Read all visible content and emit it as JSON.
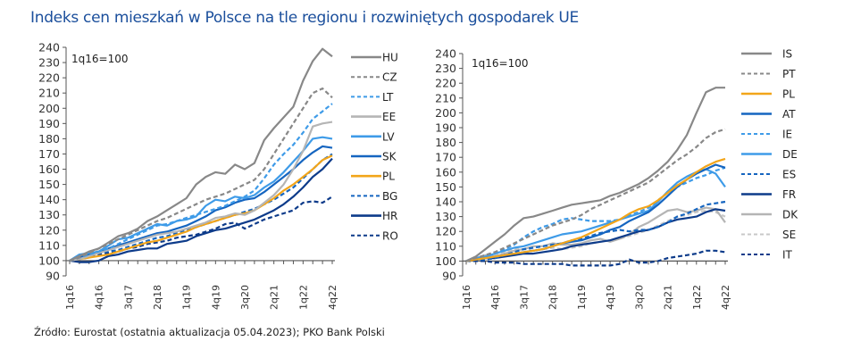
{
  "title": "Indeks cen mieszkań w Polsce na tle regionu i rozwiniętych gospodarek UE",
  "source": "Źródło: Eurostat (ostatnia aktualizacja 05.04.2023); PKO Bank Polski",
  "chart_data": [
    {
      "type": "line",
      "title": "",
      "annotation": "1q16=100",
      "ylim": [
        90,
        240
      ],
      "yticks": [
        90,
        100,
        110,
        120,
        130,
        140,
        150,
        160,
        170,
        180,
        190,
        200,
        210,
        220,
        230,
        240
      ],
      "xtick_labels": [
        "1q16",
        "4q16",
        "3q17",
        "2q18",
        "1q19",
        "4q19",
        "3q20",
        "2q21",
        "1q22",
        "4q22"
      ],
      "legend_position": "right",
      "x": [
        "1q16",
        "2q16",
        "3q16",
        "4q16",
        "1q17",
        "2q17",
        "3q17",
        "4q17",
        "1q18",
        "2q18",
        "3q18",
        "4q18",
        "1q19",
        "2q19",
        "3q19",
        "4q19",
        "1q20",
        "2q20",
        "3q20",
        "4q20",
        "1q21",
        "2q21",
        "3q21",
        "4q21",
        "1q22",
        "2q22",
        "3q22",
        "4q22"
      ],
      "series": [
        {
          "name": "HU",
          "color": "#888888",
          "dash": false,
          "values": [
            100,
            103,
            106,
            108,
            112,
            116,
            118,
            121,
            126,
            129,
            133,
            137,
            141,
            150,
            155,
            158,
            157,
            163,
            160,
            164,
            179,
            187,
            194,
            201,
            218,
            231,
            239,
            234
          ]
        },
        {
          "name": "CZ",
          "color": "#888888",
          "dash": true,
          "values": [
            100,
            102,
            105,
            108,
            111,
            114,
            117,
            120,
            123,
            126,
            128,
            131,
            134,
            137,
            140,
            142,
            144,
            147,
            150,
            153,
            160,
            170,
            180,
            190,
            200,
            210,
            213,
            207
          ]
        },
        {
          "name": "LT",
          "color": "#3e9be8",
          "dash": true,
          "values": [
            100,
            102,
            104,
            106,
            108,
            111,
            114,
            117,
            120,
            123,
            124,
            126,
            128,
            130,
            132,
            134,
            136,
            139,
            142,
            146,
            154,
            163,
            170,
            176,
            184,
            193,
            198,
            203
          ]
        },
        {
          "name": "EE",
          "color": "#b5b5b5",
          "dash": false,
          "values": [
            100,
            101,
            103,
            105,
            107,
            109,
            111,
            113,
            115,
            117,
            118,
            119,
            121,
            123,
            125,
            128,
            129,
            131,
            130,
            133,
            138,
            143,
            150,
            160,
            172,
            188,
            190,
            191
          ]
        },
        {
          "name": "LV",
          "color": "#3e9be8",
          "dash": false,
          "values": [
            100,
            104,
            105,
            106,
            110,
            114,
            115,
            118,
            121,
            124,
            123,
            126,
            127,
            129,
            136,
            140,
            139,
            142,
            141,
            143,
            148,
            152,
            158,
            165,
            172,
            180,
            181,
            180
          ]
        },
        {
          "name": "SK",
          "color": "#1565c0",
          "dash": false,
          "values": [
            100,
            102,
            104,
            106,
            108,
            110,
            112,
            114,
            116,
            118,
            119,
            121,
            123,
            126,
            129,
            133,
            135,
            138,
            140,
            141,
            145,
            150,
            155,
            160,
            166,
            171,
            175,
            174
          ]
        },
        {
          "name": "PL",
          "color": "#f2a51a",
          "dash": false,
          "values": [
            100,
            101,
            102,
            103,
            104,
            106,
            108,
            110,
            112,
            113,
            115,
            117,
            119,
            122,
            124,
            126,
            128,
            130,
            131,
            133,
            137,
            141,
            146,
            150,
            155,
            160,
            166,
            169
          ]
        },
        {
          "name": "BG",
          "color": "#1565c0",
          "dash": true,
          "values": [
            100,
            101,
            103,
            105,
            106,
            107,
            109,
            111,
            113,
            115,
            116,
            118,
            120,
            122,
            124,
            126,
            128,
            130,
            132,
            134,
            137,
            140,
            144,
            148,
            154,
            160,
            166,
            170
          ]
        },
        {
          "name": "HR",
          "color": "#0d3b8a",
          "dash": false,
          "values": [
            100,
            99,
            99,
            100,
            103,
            104,
            106,
            107,
            108,
            108,
            111,
            112,
            113,
            116,
            118,
            120,
            121,
            123,
            125,
            127,
            130,
            133,
            137,
            142,
            148,
            155,
            160,
            167
          ]
        },
        {
          "name": "RO",
          "color": "#0d3b8a",
          "dash": true,
          "values": [
            100,
            101,
            102,
            104,
            105,
            106,
            108,
            109,
            111,
            112,
            113,
            115,
            116,
            117,
            119,
            121,
            124,
            125,
            121,
            124,
            127,
            129,
            131,
            133,
            138,
            139,
            138,
            142
          ]
        }
      ]
    },
    {
      "type": "line",
      "title": "",
      "annotation": "1q16=100",
      "ylim": [
        90,
        240
      ],
      "yticks": [
        90,
        100,
        110,
        120,
        130,
        140,
        150,
        160,
        170,
        180,
        190,
        200,
        210,
        220,
        230,
        240
      ],
      "xtick_labels": [
        "1q16",
        "4q16",
        "3q17",
        "2q18",
        "1q19",
        "4q19",
        "3q20",
        "2q21",
        "1q22",
        "4q22"
      ],
      "legend_position": "right",
      "x": [
        "1q16",
        "2q16",
        "3q16",
        "4q16",
        "1q17",
        "2q17",
        "3q17",
        "4q17",
        "1q18",
        "2q18",
        "3q18",
        "4q18",
        "1q19",
        "2q19",
        "3q19",
        "4q19",
        "1q20",
        "2q20",
        "3q20",
        "4q20",
        "1q21",
        "2q21",
        "3q21",
        "4q21",
        "1q22",
        "2q22",
        "3q22",
        "4q22"
      ],
      "series": [
        {
          "name": "IS",
          "color": "#888888",
          "dash": false,
          "values": [
            100,
            103,
            108,
            113,
            118,
            124,
            129,
            130,
            132,
            134,
            136,
            138,
            139,
            140,
            141,
            144,
            146,
            149,
            152,
            156,
            161,
            167,
            175,
            185,
            200,
            214,
            217,
            217
          ]
        },
        {
          "name": "PT",
          "color": "#888888",
          "dash": true,
          "values": [
            100,
            102,
            104,
            106,
            109,
            112,
            115,
            118,
            121,
            124,
            126,
            128,
            131,
            135,
            138,
            141,
            144,
            147,
            150,
            153,
            158,
            163,
            168,
            172,
            177,
            183,
            187,
            189
          ]
        },
        {
          "name": "PL",
          "color": "#f2a51a",
          "dash": false,
          "values": [
            100,
            101,
            102,
            103,
            104,
            105,
            106,
            107,
            108,
            110,
            112,
            114,
            116,
            119,
            122,
            125,
            128,
            132,
            135,
            137,
            141,
            146,
            151,
            155,
            160,
            164,
            167,
            169
          ]
        },
        {
          "name": "AT",
          "color": "#1565c0",
          "dash": false,
          "values": [
            100,
            101,
            102,
            103,
            104,
            105,
            106,
            107,
            108,
            110,
            112,
            113,
            114,
            116,
            118,
            121,
            123,
            127,
            130,
            133,
            138,
            144,
            150,
            155,
            159,
            162,
            165,
            163
          ]
        },
        {
          "name": "IE",
          "color": "#3e9be8",
          "dash": true,
          "values": [
            100,
            102,
            104,
            106,
            108,
            111,
            116,
            120,
            123,
            125,
            128,
            129,
            128,
            127,
            127,
            127,
            128,
            131,
            133,
            136,
            141,
            146,
            150,
            153,
            156,
            158,
            161,
            163
          ]
        },
        {
          "name": "DE",
          "color": "#3e9be8",
          "dash": false,
          "values": [
            100,
            102,
            103,
            105,
            107,
            109,
            110,
            112,
            114,
            116,
            118,
            119,
            120,
            122,
            124,
            126,
            128,
            130,
            132,
            134,
            140,
            147,
            153,
            157,
            160,
            162,
            159,
            150
          ]
        },
        {
          "name": "ES",
          "color": "#1565c0",
          "dash": true,
          "values": [
            100,
            101,
            101,
            102,
            104,
            106,
            108,
            109,
            110,
            111,
            112,
            114,
            115,
            117,
            119,
            120,
            121,
            120,
            121,
            121,
            123,
            126,
            130,
            132,
            135,
            138,
            139,
            140
          ]
        },
        {
          "name": "FR",
          "color": "#0d3b8a",
          "dash": false,
          "values": [
            100,
            101,
            102,
            102,
            103,
            104,
            105,
            105,
            106,
            107,
            108,
            110,
            111,
            112,
            113,
            114,
            116,
            118,
            120,
            121,
            123,
            126,
            128,
            129,
            130,
            133,
            135,
            134
          ]
        },
        {
          "name": "DK",
          "color": "#b5b5b5",
          "dash": false,
          "values": [
            100,
            102,
            104,
            103,
            105,
            107,
            108,
            110,
            110,
            112,
            111,
            111,
            112,
            114,
            115,
            113,
            115,
            118,
            123,
            126,
            130,
            134,
            135,
            133,
            134,
            136,
            135,
            126
          ]
        },
        {
          "name": "SE",
          "color": "#c8c8c8",
          "dash": true,
          "values": [
            100,
            101,
            102,
            104,
            106,
            108,
            108,
            107,
            108,
            109,
            108,
            109,
            110,
            112,
            113,
            114,
            115,
            117,
            119,
            121,
            124,
            127,
            130,
            131,
            133,
            134,
            133,
            130
          ]
        },
        {
          "name": "IT",
          "color": "#0d3b8a",
          "dash": true,
          "values": [
            100,
            100,
            100,
            99,
            99,
            99,
            98,
            98,
            98,
            98,
            98,
            97,
            97,
            97,
            97,
            97,
            98,
            101,
            99,
            99,
            100,
            102,
            103,
            104,
            105,
            107,
            107,
            106
          ]
        }
      ]
    }
  ]
}
